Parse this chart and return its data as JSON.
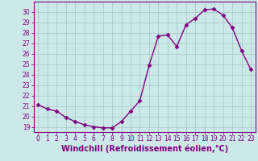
{
  "x": [
    0,
    1,
    2,
    3,
    4,
    5,
    6,
    7,
    8,
    9,
    10,
    11,
    12,
    13,
    14,
    15,
    16,
    17,
    18,
    19,
    20,
    21,
    22,
    23
  ],
  "y": [
    21.1,
    20.7,
    20.5,
    19.9,
    19.5,
    19.2,
    19.0,
    18.9,
    18.9,
    19.5,
    20.5,
    21.5,
    24.9,
    27.7,
    27.8,
    26.7,
    28.8,
    29.4,
    30.2,
    30.3,
    29.7,
    28.5,
    26.3,
    24.5
  ],
  "line_color": "#800080",
  "marker": "D",
  "markersize": 2.5,
  "linewidth": 1.0,
  "xlabel": "Windchill (Refroidissement éolien,°C)",
  "xlabel_fontsize": 7.0,
  "ylim": [
    18.5,
    31.0
  ],
  "xlim": [
    -0.5,
    23.5
  ],
  "yticks": [
    19,
    20,
    21,
    22,
    23,
    24,
    25,
    26,
    27,
    28,
    29,
    30
  ],
  "xticks": [
    0,
    1,
    2,
    3,
    4,
    5,
    6,
    7,
    8,
    9,
    10,
    11,
    12,
    13,
    14,
    15,
    16,
    17,
    18,
    19,
    20,
    21,
    22,
    23
  ],
  "xtick_labels": [
    "0",
    "1",
    "2",
    "3",
    "4",
    "5",
    "6",
    "7",
    "8",
    "9",
    "10",
    "11",
    "12",
    "13",
    "14",
    "15",
    "16",
    "17",
    "18",
    "19",
    "20",
    "21",
    "22",
    "23"
  ],
  "grid_color": "#aacccc",
  "bg_color": "#cce8e8",
  "tick_fontsize": 5.5,
  "tick_color": "#800080",
  "spine_color": "#800080",
  "xlabel_fontweight": "bold"
}
